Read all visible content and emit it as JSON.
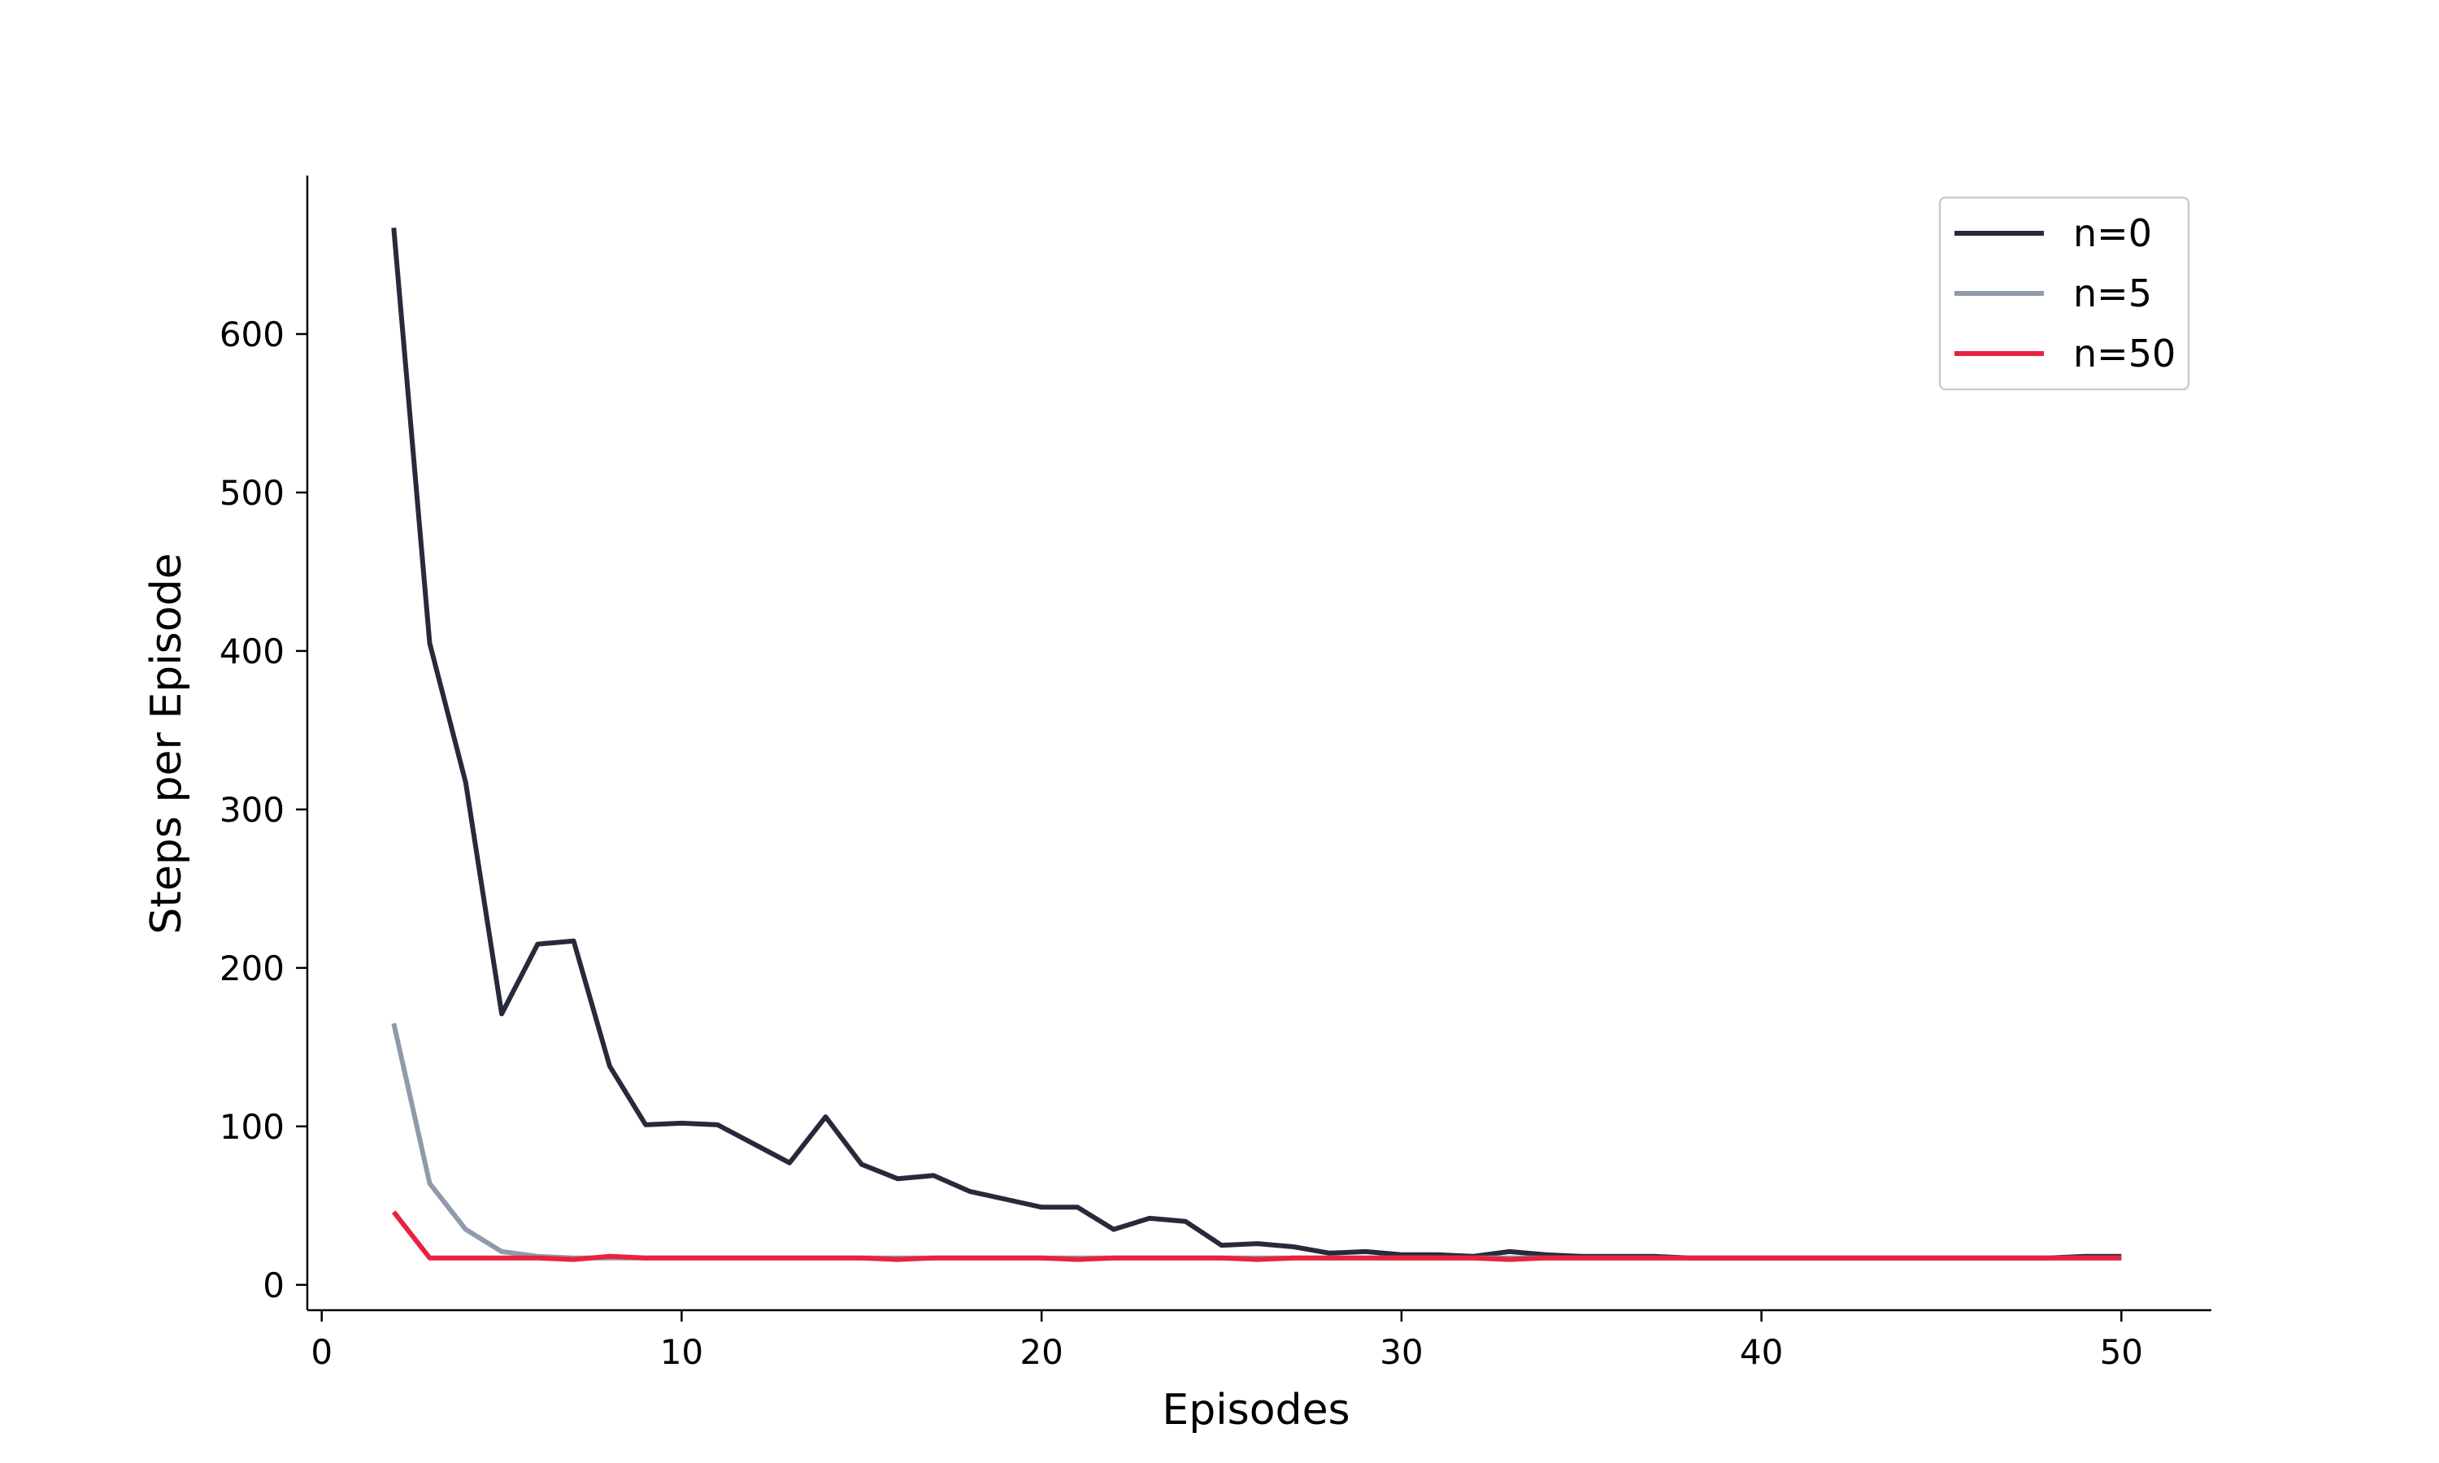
{
  "chart_data": {
    "type": "line",
    "xlabel": "Episodes",
    "ylabel": "Steps per Episode",
    "xlim": [
      -0.4,
      52.5
    ],
    "ylim": [
      -16,
      700
    ],
    "xticks": [
      0,
      10,
      20,
      30,
      40,
      50
    ],
    "yticks": [
      0,
      100,
      200,
      300,
      400,
      500,
      600
    ],
    "grid": false,
    "legend_position": "top-right",
    "x": [
      2,
      3,
      4,
      5,
      6,
      7,
      8,
      9,
      10,
      11,
      12,
      13,
      14,
      15,
      16,
      17,
      18,
      19,
      20,
      21,
      22,
      23,
      24,
      25,
      26,
      27,
      28,
      29,
      30,
      31,
      32,
      33,
      34,
      35,
      36,
      37,
      38,
      39,
      40,
      41,
      42,
      43,
      44,
      45,
      46,
      47,
      48,
      49,
      50
    ],
    "series": [
      {
        "name": "n=0",
        "color": "#262a3b",
        "values": [
          667,
          405,
          317,
          171,
          215,
          217,
          138,
          101,
          102,
          101,
          89,
          77,
          106,
          76,
          67,
          69,
          59,
          54,
          49,
          49,
          35,
          42,
          40,
          25,
          26,
          24,
          20,
          21,
          19,
          19,
          18,
          21,
          19,
          18,
          18,
          18,
          17,
          17,
          17,
          17,
          17,
          17,
          17,
          17,
          17,
          17,
          17,
          18,
          18
        ]
      },
      {
        "name": "n=5",
        "color": "#8f9aab",
        "values": [
          165,
          64,
          35,
          21,
          18,
          17,
          17,
          17,
          17,
          17,
          17,
          17,
          17,
          17,
          17,
          17,
          17,
          17,
          17,
          17,
          17,
          17,
          17,
          17,
          17,
          17,
          17,
          17,
          17,
          17,
          17,
          17,
          17,
          17,
          17,
          17,
          17,
          17,
          17,
          17,
          17,
          17,
          17,
          17,
          17,
          17,
          17,
          17,
          17
        ]
      },
      {
        "name": "n=50",
        "color": "#e8233f",
        "values": [
          46,
          17,
          17,
          17,
          17,
          16,
          18,
          17,
          17,
          17,
          17,
          17,
          17,
          17,
          16,
          17,
          17,
          17,
          17,
          16,
          17,
          17,
          17,
          17,
          16,
          17,
          17,
          17,
          17,
          17,
          17,
          16,
          17,
          17,
          17,
          17,
          17,
          17,
          17,
          17,
          17,
          17,
          17,
          17,
          17,
          17,
          17,
          17,
          17
        ]
      }
    ]
  }
}
